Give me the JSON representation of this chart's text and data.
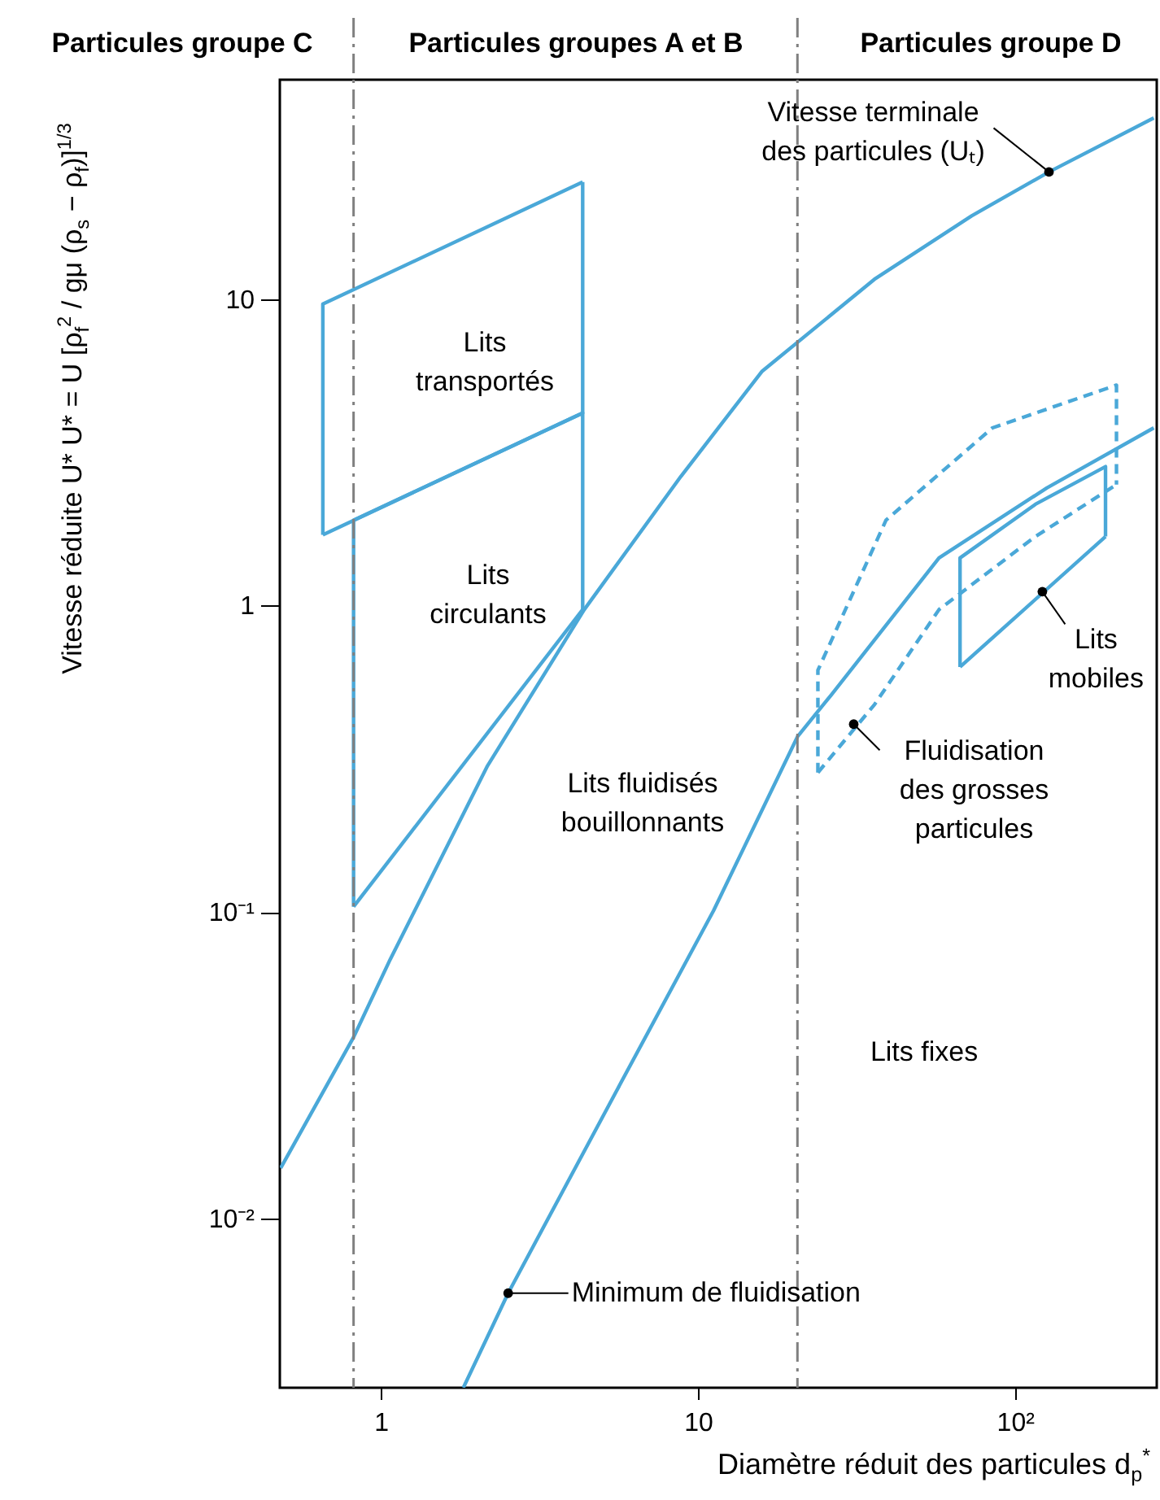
{
  "chart_data": {
    "type": "line",
    "xlabel": "Diamètre réduit des particules d$_{p}$$^{*}$",
    "ylabel": "Vitesse réduite U*   U* = U [ρ$_{f}$$^{2}$ / gμ (ρ$_{s}$ − ρ$_{f}$)]$^{1/3}$",
    "log": "xy",
    "xlim": [
      0.48,
      280
    ],
    "ylim": [
      0.0028,
      52
    ],
    "xticks": [
      1,
      10,
      {
        "value": 100,
        "label": "10²"
      }
    ],
    "yticks": [
      {
        "value": 0.01,
        "label": "10⁻²"
      },
      {
        "value": 0.1,
        "label": "10⁻¹"
      },
      1,
      10
    ],
    "grid": false,
    "marker": "none",
    "series": [
      {
        "color": "#4aa8d8",
        "x": [
          0.483,
          0.82,
          1.07,
          2.17,
          4.38,
          8.84,
          15.9,
          36,
          73,
          128,
          274
        ],
        "values": [
          0.0146,
          0.039,
          0.07,
          0.3,
          0.97,
          2.64,
          5.8,
          11.6,
          18.7,
          26,
          39
        ]
      },
      {
        "color": "#4aa8d8",
        "x": [
          1.82,
          2.52,
          5.53,
          11.2,
          20.6,
          26.3,
          57.6,
          126,
          274
        ],
        "values": [
          0.0028,
          0.0057,
          0.026,
          0.101,
          0.373,
          0.51,
          1.43,
          2.42,
          3.8
        ]
      },
      {
        "color": "#4aa8d8",
        "x": [
          0.656,
          0.656,
          4.33
        ],
        "values": [
          1.7,
          9.64,
          24.1
        ]
      },
      {
        "color": "#4aa8d8",
        "x": [
          0.656,
          4.33,
          4.33
        ],
        "values": [
          1.7,
          4.25,
          24.1
        ]
      },
      {
        "color": "#4aa8d8",
        "x": [
          0.82,
          0.82,
          4.33,
          4.33
        ],
        "values": [
          0.104,
          1.9,
          4.25,
          0.97
        ]
      },
      {
        "color": "#4aa8d8",
        "x": [
          0.82,
          4.33
        ],
        "values": [
          0.104,
          0.97
        ]
      },
      {
        "color": "#4aa8d8",
        "line_style": "dashed",
        "x": [
          23.9,
          23.9,
          39.2,
          84.9,
          209,
          209
        ],
        "values": [
          0.285,
          0.615,
          1.9,
          3.8,
          5.24,
          2.48
        ]
      },
      {
        "color": "#4aa8d8",
        "line_style": "dashed",
        "x": [
          23.9,
          36.1,
          57.6,
          116,
          209
        ],
        "values": [
          0.285,
          0.476,
          0.97,
          1.68,
          2.48
        ]
      },
      {
        "color": "#4aa8d8",
        "x": [
          67.1,
          67.1,
          116,
          193,
          193
        ],
        "values": [
          0.63,
          1.43,
          2.14,
          2.84,
          1.68
        ]
      },
      {
        "color": "#4aa8d8",
        "x": [
          67.1,
          193
        ],
        "values": [
          0.63,
          1.68
        ]
      }
    ],
    "ref_lines": [
      {
        "axis": "x",
        "value": 0.82,
        "color": "#808080",
        "line_style": "dashed"
      },
      {
        "axis": "x",
        "value": 20.6,
        "color": "#808080",
        "line_style": "dashed"
      }
    ],
    "annotations": [
      "Particules groupe C",
      "Particules groupes A et B",
      "Particules groupe D",
      {
        "text": "Vitesse terminale\ndes particules (Uₜ)",
        "x": 128,
        "y": 26
      },
      "Lits\ntransportés",
      "Lits\ncirculants",
      "Lits fluidisés\nbouillonnants",
      {
        "text": "Lits\nmobiles",
        "x": 122,
        "y": 1.11
      },
      {
        "text": "Fluidisation\ndes grosses\nparticules",
        "x": 31,
        "y": 0.41
      },
      "Lits fixes",
      {
        "text": "Minimum de fluidisation",
        "x": 2.52,
        "y": 0.0057
      }
    ]
  }
}
